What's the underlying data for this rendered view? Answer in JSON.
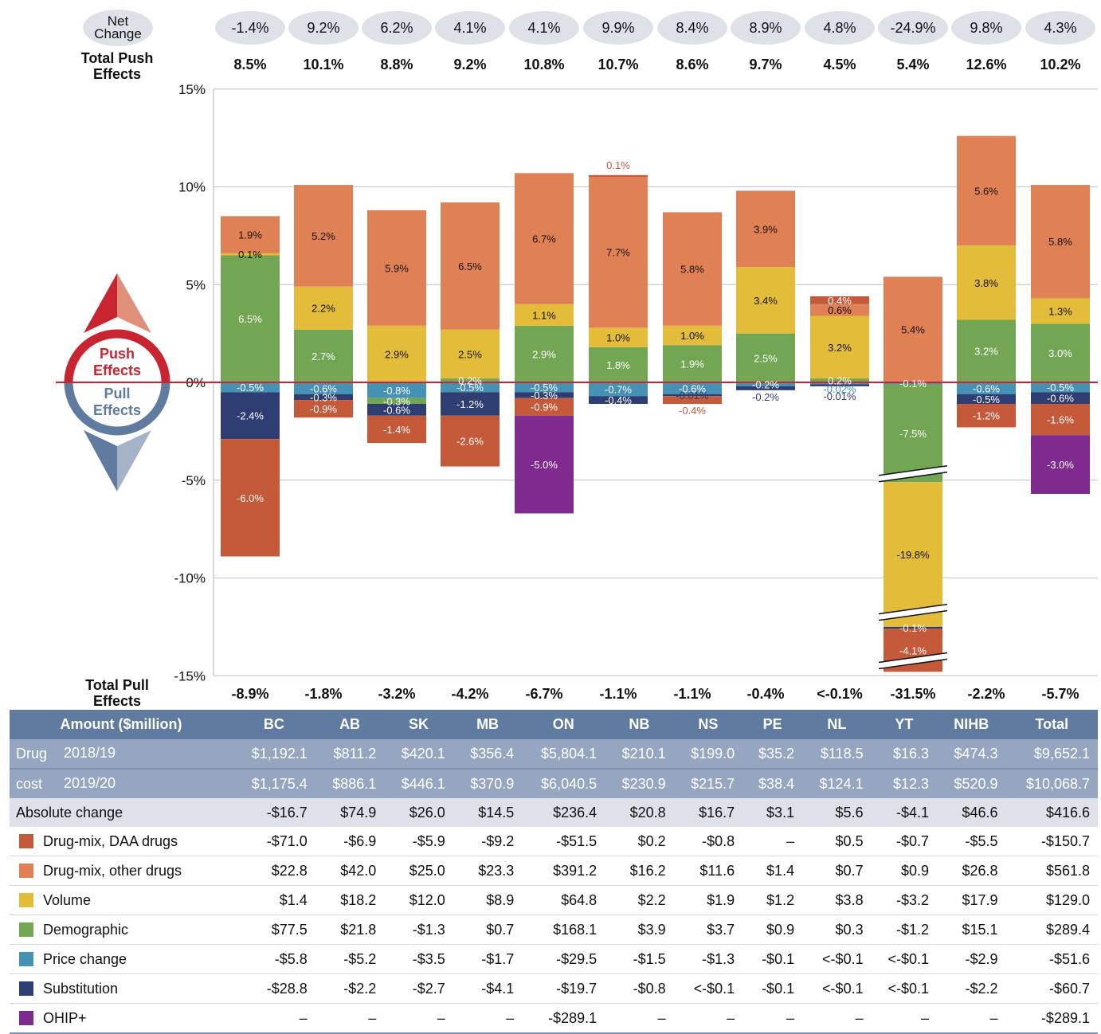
{
  "header": {
    "net_change_label": "Net Change",
    "total_push_label": "Total Push Effects",
    "total_pull_label": "Total Pull Effects",
    "push_badge": "Push Effects",
    "pull_badge": "Pull Effects"
  },
  "colors": {
    "daa": "#c55a3a",
    "other": "#e08055",
    "volume": "#e3bc3a",
    "demographic": "#72a653",
    "price": "#4592b5",
    "substitution": "#2e3e73",
    "ohip": "#7e2a8e",
    "zero_line": "#c82530",
    "push_red": "#c82530",
    "pull_blue": "#5f7b9f"
  },
  "chart_data": {
    "type": "bar",
    "stacked": true,
    "title": "",
    "xlabel": "",
    "ylabel": "",
    "ylim": [
      -15,
      15
    ],
    "yticks": [
      "15%",
      "10%",
      "5%",
      "0%",
      "-5%",
      "-10%",
      "-15%"
    ],
    "ytick_values": [
      15,
      10,
      5,
      0,
      -5,
      -10,
      -15
    ],
    "grid": true,
    "axis_break": {
      "category": "YT",
      "note": "bar truncated with break marks"
    },
    "categories": [
      "BC",
      "AB",
      "SK",
      "MB",
      "ON",
      "NB",
      "NS",
      "PE",
      "NL",
      "YT",
      "NIHB",
      "Total"
    ],
    "net_change": [
      "-1.4%",
      "9.2%",
      "6.2%",
      "4.1%",
      "4.1%",
      "9.9%",
      "8.4%",
      "8.9%",
      "4.8%",
      "-24.9%",
      "9.8%",
      "4.3%"
    ],
    "total_push": [
      "8.5%",
      "10.1%",
      "8.8%",
      "9.2%",
      "10.8%",
      "10.7%",
      "8.6%",
      "9.7%",
      "4.5%",
      "5.4%",
      "12.6%",
      "10.2%"
    ],
    "total_pull": [
      "-8.9%",
      "-1.8%",
      "-3.2%",
      "-4.2%",
      "-6.7%",
      "-1.1%",
      "-1.1%",
      "-0.4%",
      "<-0.1%",
      "-31.5%",
      "-2.2%",
      "-5.7%"
    ],
    "series": [
      {
        "name": "Drug-mix, DAA drugs",
        "key": "daa",
        "values": [
          -6.0,
          -0.9,
          -1.4,
          -2.6,
          -0.9,
          0.1,
          -0.4,
          0,
          0.4,
          -4.1,
          -1.2,
          -1.6
        ],
        "labels": [
          "-6.0%",
          "-0.9%",
          "-1.4%",
          "-2.6%",
          "-0.9%",
          "0.1%",
          "-0.4%",
          "",
          "0.4%",
          "-4.1%",
          "-1.2%",
          "-1.6%"
        ]
      },
      {
        "name": "Drug-mix, other drugs",
        "key": "other",
        "values": [
          1.9,
          5.2,
          5.9,
          6.5,
          6.7,
          7.7,
          5.8,
          3.9,
          0.6,
          5.4,
          5.6,
          5.8
        ],
        "labels": [
          "1.9%",
          "5.2%",
          "5.9%",
          "6.5%",
          "6.7%",
          "7.7%",
          "5.8%",
          "3.9%",
          "0.6%",
          "5.4%",
          "5.6%",
          "5.8%"
        ]
      },
      {
        "name": "Volume",
        "key": "volume",
        "values": [
          0.1,
          2.2,
          2.9,
          2.5,
          1.1,
          1.0,
          1.0,
          3.4,
          3.2,
          -19.8,
          3.8,
          1.3
        ],
        "labels": [
          "0.1%",
          "2.2%",
          "2.9%",
          "2.5%",
          "1.1%",
          "1.0%",
          "1.0%",
          "3.4%",
          "3.2%",
          "-19.8%",
          "3.8%",
          "1.3%"
        ]
      },
      {
        "name": "Demographic",
        "key": "demographic",
        "values": [
          6.5,
          2.7,
          -0.3,
          0.2,
          2.9,
          1.8,
          1.9,
          2.5,
          0.2,
          -7.5,
          3.2,
          3.0
        ],
        "labels": [
          "6.5%",
          "2.7%",
          "-0.3%",
          "0.2%",
          "2.9%",
          "1.8%",
          "1.9%",
          "2.5%",
          "0.2%",
          "-7.5%",
          "3.2%",
          "3.0%"
        ]
      },
      {
        "name": "Price change",
        "key": "price",
        "values": [
          -0.5,
          -0.6,
          -0.8,
          -0.5,
          -0.5,
          -0.7,
          -0.6,
          -0.2,
          -0.02,
          -0.1,
          -0.6,
          -0.5
        ],
        "labels": [
          "-0.5%",
          "-0.6%",
          "-0.8%",
          "-0.5%",
          "-0.5%",
          "-0.7%",
          "-0.6%",
          "-0.2%",
          "-0.02%",
          "-0.1%",
          "-0.6%",
          "-0.5%"
        ]
      },
      {
        "name": "Substitution",
        "key": "substitution",
        "values": [
          -2.4,
          -0.3,
          -0.6,
          -1.2,
          -0.3,
          -0.4,
          -0.01,
          -0.2,
          -0.01,
          -0.1,
          -0.5,
          -0.6
        ],
        "labels": [
          "-2.4%",
          "-0.3%",
          "-0.6%",
          "-1.2%",
          "-0.3%",
          "-0.4%",
          "-0.01%",
          "-0.2%",
          "-0.01%",
          "-0.1%",
          "-0.5%",
          "-0.6%"
        ]
      },
      {
        "name": "OHIP+",
        "key": "ohip",
        "values": [
          0,
          0,
          0,
          0,
          -5.0,
          0,
          0,
          0,
          0,
          0,
          0,
          -3.0
        ],
        "labels": [
          "",
          "",
          "",
          "",
          "-5.0%",
          "",
          "",
          "",
          "",
          "",
          "",
          "-3.0%"
        ]
      }
    ]
  },
  "table": {
    "header_label": "Amount ($million)",
    "columns": [
      "BC",
      "AB",
      "SK",
      "MB",
      "ON",
      "NB",
      "NS",
      "PE",
      "NL",
      "YT",
      "NIHB",
      "Total"
    ],
    "drug_cost_label": "Drug cost",
    "drug_cost_rows": [
      {
        "label": "2018/19",
        "values": [
          "$1,192.1",
          "$811.2",
          "$420.1",
          "$356.4",
          "$5,804.1",
          "$210.1",
          "$199.0",
          "$35.2",
          "$118.5",
          "$16.3",
          "$474.3",
          "$9,652.1"
        ]
      },
      {
        "label": "2019/20",
        "values": [
          "$1,175.4",
          "$886.1",
          "$446.1",
          "$370.9",
          "$6,040.5",
          "$230.9",
          "$215.7",
          "$38.4",
          "$124.1",
          "$12.3",
          "$520.9",
          "$10,068.7"
        ]
      }
    ],
    "absolute_change": {
      "label": "Absolute change",
      "values": [
        "-$16.7",
        "$74.9",
        "$26.0",
        "$14.5",
        "$236.4",
        "$20.8",
        "$16.7",
        "$3.1",
        "$5.6",
        "-$4.1",
        "$46.6",
        "$416.6"
      ]
    },
    "components": [
      {
        "label": "Drug-mix, DAA drugs",
        "color_key": "daa",
        "values": [
          "-$71.0",
          "-$6.9",
          "-$5.9",
          "-$9.2",
          "-$51.5",
          "$0.2",
          "-$0.8",
          "–",
          "$0.5",
          "-$0.7",
          "-$5.5",
          "-$150.7"
        ]
      },
      {
        "label": "Drug-mix, other drugs",
        "color_key": "other",
        "values": [
          "$22.8",
          "$42.0",
          "$25.0",
          "$23.3",
          "$391.2",
          "$16.2",
          "$11.6",
          "$1.4",
          "$0.7",
          "$0.9",
          "$26.8",
          "$561.8"
        ]
      },
      {
        "label": "Volume",
        "color_key": "volume",
        "values": [
          "$1.4",
          "$18.2",
          "$12.0",
          "$8.9",
          "$64.8",
          "$2.2",
          "$1.9",
          "$1.2",
          "$3.8",
          "-$3.2",
          "$17.9",
          "$129.0"
        ]
      },
      {
        "label": "Demographic",
        "color_key": "demographic",
        "values": [
          "$77.5",
          "$21.8",
          "-$1.3",
          "$0.7",
          "$168.1",
          "$3.9",
          "$3.7",
          "$0.9",
          "$0.3",
          "-$1.2",
          "$15.1",
          "$289.4"
        ]
      },
      {
        "label": "Price change",
        "color_key": "price",
        "values": [
          "-$5.8",
          "-$5.2",
          "-$3.5",
          "-$1.7",
          "-$29.5",
          "-$1.5",
          "-$1.3",
          "-$0.1",
          "<-$0.1",
          "<-$0.1",
          "-$2.9",
          "-$51.6"
        ]
      },
      {
        "label": "Substitution",
        "color_key": "substitution",
        "values": [
          "-$28.8",
          "-$2.2",
          "-$2.7",
          "-$4.1",
          "-$19.7",
          "-$0.8",
          "<-$0.1",
          "-$0.1",
          "<-$0.1",
          "<-$0.1",
          "-$2.2",
          "-$60.7"
        ]
      },
      {
        "label": "OHIP+",
        "color_key": "ohip",
        "values": [
          "–",
          "–",
          "–",
          "–",
          "-$289.1",
          "–",
          "–",
          "–",
          "–",
          "–",
          "–",
          "-$289.1"
        ]
      }
    ]
  }
}
